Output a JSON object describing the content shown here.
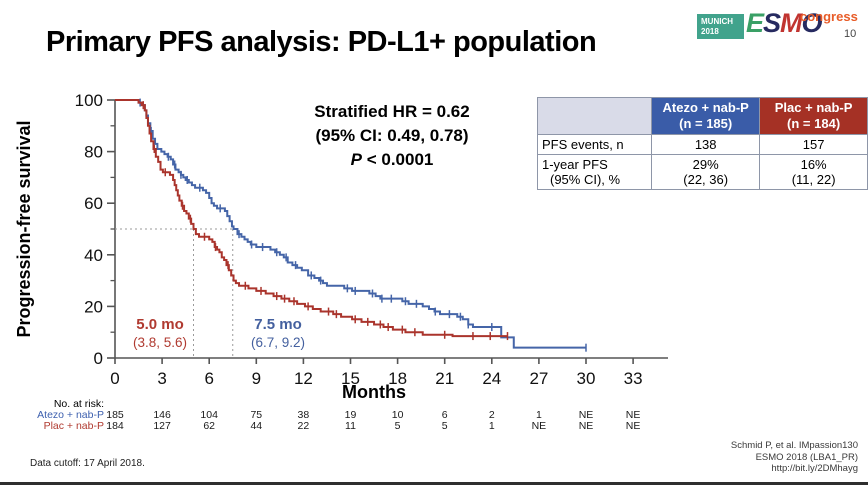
{
  "slide": {
    "title": "Primary PFS analysis: PD-L1+ population",
    "page_number": "10",
    "footnote_left": "Data cutoff: 17 April 2018.",
    "citation_lines": [
      "Schmid P, et al. IMpassion130",
      "ESMO 2018 (LBA1_PR)",
      "http://bit.ly/2DMhayg"
    ]
  },
  "logo": {
    "venue_line1": "MUNICH",
    "venue_line2": "2018",
    "venue_bg": "#41a38c",
    "letters": [
      {
        "char": "E",
        "color": "#3aa066"
      },
      {
        "char": "S",
        "color": "#262a60"
      },
      {
        "char": "M",
        "color": "#c13430"
      },
      {
        "char": "O",
        "color": "#262a60"
      }
    ],
    "congress_label": "congress",
    "congress_color": "#e85c28"
  },
  "annotations": {
    "hr_line1": "Stratified HR = 0.62",
    "hr_line2": "(95% CI: 0.49, 0.78)",
    "p_italic": "P",
    "p_rest": " < 0.0001",
    "median_red": {
      "label": "5.0 mo",
      "ci": "(3.8, 5.6)",
      "color": "#b03a30"
    },
    "median_blue": {
      "label": "7.5 mo",
      "ci": "(6.7, 9.2)",
      "color": "#44609f"
    }
  },
  "stats_table": {
    "col_headers": [
      {
        "line1": "Atezo + nab-P",
        "line2": "(n = 185)",
        "bg": "#3a5ca8"
      },
      {
        "line1": "Plac + nab-P",
        "line2": "(n = 184)",
        "bg": "#a53125"
      }
    ],
    "rows": [
      {
        "label_lines": [
          "PFS events, n",
          ""
        ],
        "values": [
          [
            "138",
            ""
          ],
          [
            "157",
            ""
          ]
        ]
      },
      {
        "label_lines": [
          "1-year PFS",
          "(95% CI), %"
        ],
        "values": [
          [
            "29%",
            "(22, 36)"
          ],
          [
            "16%",
            "(11, 22)"
          ]
        ]
      }
    ]
  },
  "chart_data": {
    "type": "line",
    "subtype": "kaplan-meier-step",
    "title": "",
    "xlabel": "Months",
    "ylabel": "Progression-free survival",
    "xlim": [
      0,
      34.5
    ],
    "ylim": [
      0,
      100
    ],
    "x_ticks": [
      0,
      3,
      6,
      9,
      12,
      15,
      18,
      21,
      24,
      27,
      30,
      33
    ],
    "y_ticks_major": [
      0,
      20,
      40,
      60,
      80,
      100
    ],
    "y_ticks_minor": [
      10,
      30,
      50,
      70,
      90
    ],
    "grid": false,
    "reference": {
      "y": 50,
      "x_medians": [
        5.0,
        7.5
      ],
      "line_color": "#9a9a9a"
    },
    "series": [
      {
        "name": "Atezo + nab-P",
        "color": "#4565a8",
        "median_months": 7.5,
        "points": [
          [
            0,
            100
          ],
          [
            1.2,
            100
          ],
          [
            1.5,
            99
          ],
          [
            1.7,
            98
          ],
          [
            1.9,
            96
          ],
          [
            2.0,
            94
          ],
          [
            2.1,
            91
          ],
          [
            2.25,
            88
          ],
          [
            2.4,
            85
          ],
          [
            2.55,
            83
          ],
          [
            2.7,
            81
          ],
          [
            2.95,
            80
          ],
          [
            3.15,
            79
          ],
          [
            3.35,
            78
          ],
          [
            3.55,
            77
          ],
          [
            3.7,
            75
          ],
          [
            3.85,
            73
          ],
          [
            4.05,
            72
          ],
          [
            4.2,
            71
          ],
          [
            4.35,
            70
          ],
          [
            4.5,
            69
          ],
          [
            4.7,
            68
          ],
          [
            4.9,
            67
          ],
          [
            5.1,
            66
          ],
          [
            5.6,
            65
          ],
          [
            5.8,
            64
          ],
          [
            6.0,
            62
          ],
          [
            6.15,
            60
          ],
          [
            6.3,
            59
          ],
          [
            6.5,
            58
          ],
          [
            7.0,
            57
          ],
          [
            7.15,
            55
          ],
          [
            7.3,
            53
          ],
          [
            7.45,
            51
          ],
          [
            7.55,
            50
          ],
          [
            7.8,
            48
          ],
          [
            8.05,
            47
          ],
          [
            8.25,
            46
          ],
          [
            8.45,
            45
          ],
          [
            8.65,
            44
          ],
          [
            9.0,
            43
          ],
          [
            9.9,
            42
          ],
          [
            10.2,
            41
          ],
          [
            10.5,
            40
          ],
          [
            10.75,
            39
          ],
          [
            11.0,
            37
          ],
          [
            11.3,
            36
          ],
          [
            11.6,
            35
          ],
          [
            11.9,
            34
          ],
          [
            12.3,
            32
          ],
          [
            12.7,
            31
          ],
          [
            13.0,
            30
          ],
          [
            13.25,
            29
          ],
          [
            13.5,
            28
          ],
          [
            14.6,
            27
          ],
          [
            15.1,
            26
          ],
          [
            16.2,
            25
          ],
          [
            16.6,
            24
          ],
          [
            16.9,
            23
          ],
          [
            18.3,
            22
          ],
          [
            18.7,
            21
          ],
          [
            19.6,
            20
          ],
          [
            20.0,
            19
          ],
          [
            20.35,
            18
          ],
          [
            20.7,
            17
          ],
          [
            21.8,
            16
          ],
          [
            22.15,
            15
          ],
          [
            22.5,
            13
          ],
          [
            22.8,
            12
          ],
          [
            24.6,
            8
          ],
          [
            25.4,
            4
          ],
          [
            30,
            4
          ]
        ],
        "censor_x": [
          1.6,
          2.3,
          3.4,
          3.8,
          4.2,
          4.6,
          5.4,
          6.7,
          7.9,
          8.7,
          9.4,
          10.3,
          10.9,
          11.5,
          12.5,
          13.1,
          14.8,
          15.3,
          16.4,
          17.0,
          17.6,
          18.5,
          19.2,
          20.4,
          21.3,
          22.0,
          22.5,
          24.0,
          30.0
        ]
      },
      {
        "name": "Plac + nab-P",
        "color": "#aa342c",
        "median_months": 5.0,
        "points": [
          [
            0,
            100
          ],
          [
            1.2,
            100
          ],
          [
            1.5,
            99
          ],
          [
            1.7,
            98
          ],
          [
            1.9,
            96
          ],
          [
            2.0,
            93
          ],
          [
            2.1,
            90
          ],
          [
            2.2,
            87
          ],
          [
            2.3,
            84
          ],
          [
            2.45,
            81
          ],
          [
            2.6,
            78
          ],
          [
            2.75,
            76
          ],
          [
            2.9,
            73
          ],
          [
            3.05,
            72
          ],
          [
            3.5,
            71
          ],
          [
            3.7,
            69
          ],
          [
            3.8,
            67
          ],
          [
            3.9,
            65
          ],
          [
            4.0,
            63
          ],
          [
            4.1,
            61
          ],
          [
            4.25,
            59
          ],
          [
            4.4,
            57
          ],
          [
            4.55,
            56
          ],
          [
            4.7,
            54
          ],
          [
            4.85,
            52
          ],
          [
            5.0,
            50
          ],
          [
            5.15,
            48
          ],
          [
            5.35,
            47
          ],
          [
            6.0,
            46
          ],
          [
            6.2,
            45
          ],
          [
            6.35,
            43
          ],
          [
            6.5,
            42
          ],
          [
            6.65,
            41
          ],
          [
            6.8,
            39
          ],
          [
            6.95,
            38
          ],
          [
            7.1,
            36
          ],
          [
            7.25,
            34
          ],
          [
            7.4,
            32
          ],
          [
            7.55,
            30
          ],
          [
            7.7,
            29
          ],
          [
            7.9,
            28
          ],
          [
            8.5,
            27
          ],
          [
            9.0,
            26
          ],
          [
            9.6,
            25
          ],
          [
            10.1,
            24
          ],
          [
            10.6,
            23
          ],
          [
            11.1,
            22
          ],
          [
            11.6,
            21
          ],
          [
            12.1,
            20
          ],
          [
            12.6,
            19
          ],
          [
            13.1,
            18
          ],
          [
            13.9,
            17
          ],
          [
            14.4,
            16
          ],
          [
            15.1,
            15
          ],
          [
            15.7,
            14
          ],
          [
            16.5,
            13
          ],
          [
            17.1,
            12
          ],
          [
            17.7,
            11
          ],
          [
            18.5,
            10
          ],
          [
            19.6,
            9
          ],
          [
            21.5,
            8.5
          ],
          [
            25.0,
            8.5
          ]
        ],
        "censor_x": [
          1.8,
          2.5,
          3.2,
          4.3,
          4.8,
          5.7,
          6.4,
          7.2,
          8.3,
          9.3,
          10.3,
          10.8,
          11.4,
          12.3,
          13.6,
          14.1,
          15.3,
          16.1,
          16.9,
          17.4,
          18.3,
          19.1,
          21.0,
          22.8,
          23.9,
          25.0
        ]
      }
    ]
  },
  "risk_table": {
    "title": "No. at risk:",
    "months": [
      0,
      3,
      6,
      9,
      12,
      15,
      18,
      21,
      24,
      27,
      30,
      33
    ],
    "rows": [
      {
        "label": "Atezo + nab-P",
        "color": "#3c5fae",
        "values": [
          "185",
          "146",
          "104",
          "75",
          "38",
          "19",
          "10",
          "6",
          "2",
          "1",
          "NE",
          "NE"
        ]
      },
      {
        "label": "Plac + nab-P",
        "color": "#b03a30",
        "values": [
          "184",
          "127",
          "62",
          "44",
          "22",
          "11",
          "5",
          "5",
          "1",
          "NE",
          "NE",
          "NE"
        ]
      }
    ]
  }
}
